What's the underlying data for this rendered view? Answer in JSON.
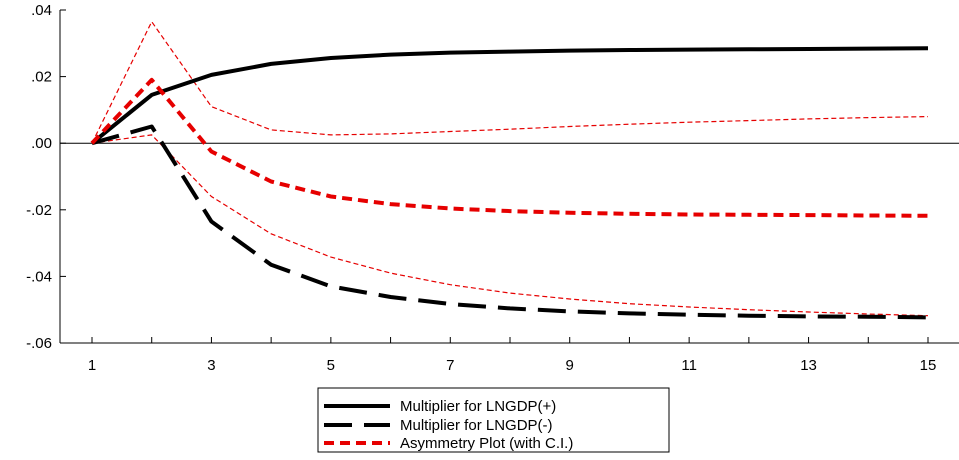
{
  "chart_data": {
    "type": "line",
    "title": "",
    "xlabel": "",
    "ylabel": "",
    "x": [
      1,
      2,
      3,
      4,
      5,
      6,
      7,
      8,
      9,
      10,
      11,
      12,
      13,
      14,
      15
    ],
    "xticks": [
      "1",
      "3",
      "5",
      "7",
      "9",
      "11",
      "13",
      "15"
    ],
    "ylim": [
      -0.06,
      0.04
    ],
    "yticks": [
      ".04",
      ".02",
      ".00",
      "-.02",
      "-.04",
      "-.06"
    ],
    "zero_line": true,
    "legend_position": "bottom-center",
    "series": [
      {
        "name": "Multiplier for LNGDP(+)",
        "style": "solid",
        "color": "#000000",
        "values": [
          0.0,
          0.0145,
          0.0205,
          0.0238,
          0.0256,
          0.0266,
          0.0272,
          0.0275,
          0.0278,
          0.028,
          0.0281,
          0.0282,
          0.0283,
          0.0284,
          0.0285
        ]
      },
      {
        "name": "Multiplier for LNGDP(-)",
        "style": "long-dash",
        "color": "#000000",
        "values": [
          0.0,
          0.005,
          -0.0235,
          -0.0365,
          -0.043,
          -0.0462,
          -0.0483,
          -0.0496,
          -0.0505,
          -0.0511,
          -0.0515,
          -0.0518,
          -0.052,
          -0.0521,
          -0.0523
        ]
      },
      {
        "name": "Asymmetry Plot (with C.I.)",
        "style": "short-dash",
        "color": "#e60000",
        "values": [
          0.0,
          0.019,
          -0.0025,
          -0.0115,
          -0.016,
          -0.0183,
          -0.0196,
          -0.0204,
          -0.0209,
          -0.0212,
          -0.0214,
          -0.0215,
          -0.0216,
          -0.0217,
          -0.0218
        ]
      },
      {
        "name": "Upper C.I.",
        "style": "thin",
        "color": "#e60000",
        "in_legend": false,
        "values": [
          0.0,
          0.0365,
          0.011,
          0.004,
          0.0025,
          0.0028,
          0.0035,
          0.0042,
          0.005,
          0.0057,
          0.0063,
          0.0068,
          0.0073,
          0.0077,
          0.008
        ]
      },
      {
        "name": "Lower C.I.",
        "style": "thin",
        "color": "#e60000",
        "in_legend": false,
        "values": [
          0.0,
          0.0025,
          -0.016,
          -0.0272,
          -0.0342,
          -0.039,
          -0.0425,
          -0.045,
          -0.0468,
          -0.0482,
          -0.0492,
          -0.05,
          -0.0507,
          -0.0513,
          -0.0518
        ]
      }
    ],
    "legend": [
      {
        "label": "Multiplier for LNGDP(+)",
        "style": "solid"
      },
      {
        "label": "Multiplier for LNGDP(-)",
        "style": "long-dash"
      },
      {
        "label": "Asymmetry Plot (with C.I.)",
        "style": "short-dash"
      }
    ]
  }
}
